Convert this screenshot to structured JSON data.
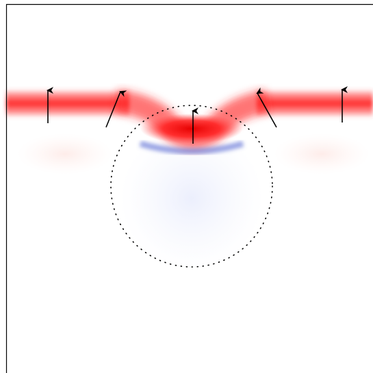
{
  "figure": {
    "description_colors": {
      "positive_field": "#e60000",
      "negative_field": "#3b4cc0",
      "background": "#ffffff",
      "frame": "#000000",
      "arrow": "#000000",
      "circle_dots": "#000000"
    },
    "arrows": [
      {
        "name": "arrow-far-left",
        "direction": "up"
      },
      {
        "name": "arrow-left",
        "direction": "up-right"
      },
      {
        "name": "arrow-center",
        "direction": "up"
      },
      {
        "name": "arrow-right",
        "direction": "up-left"
      },
      {
        "name": "arrow-far-right",
        "direction": "up"
      }
    ]
  }
}
